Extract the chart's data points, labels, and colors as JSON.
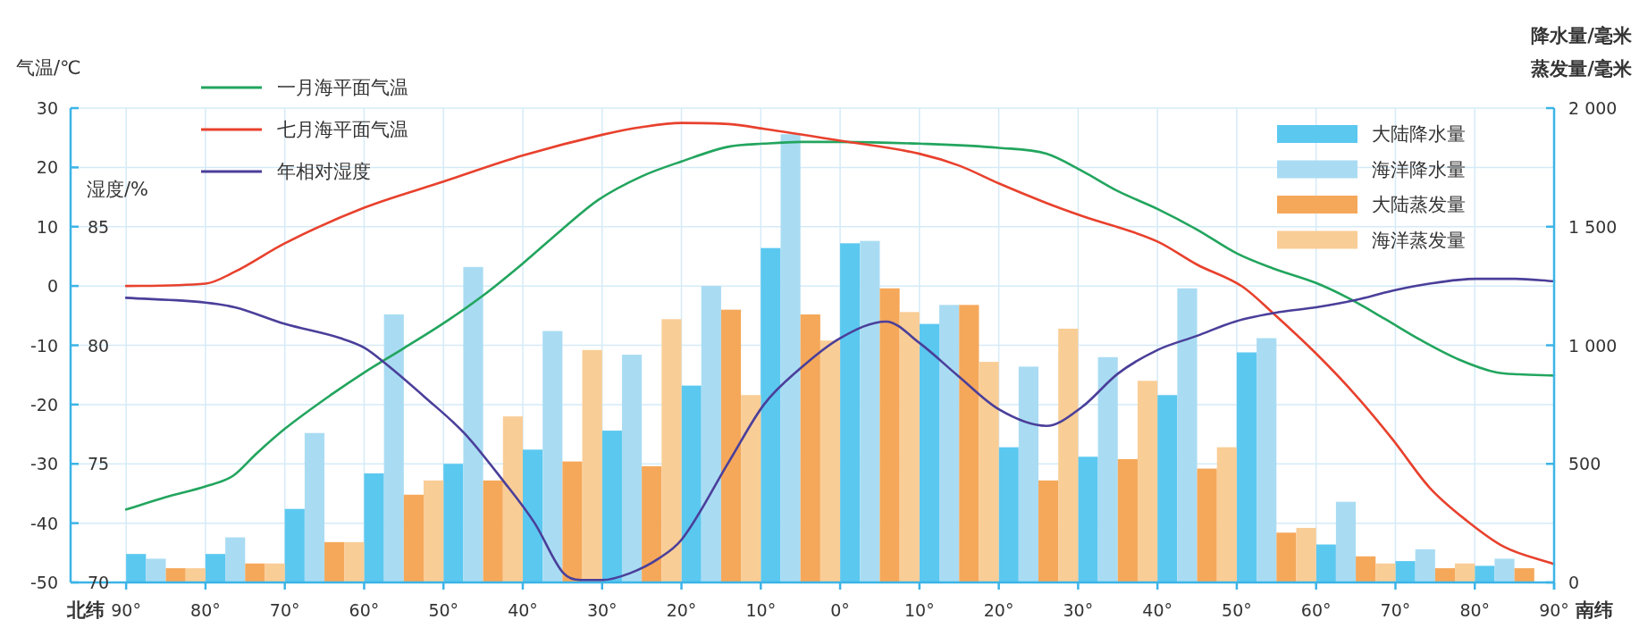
{
  "chart_data": {
    "type": "bar",
    "xlim": [
      97,
      -90
    ],
    "xticks": [
      {
        "value": 90,
        "label": "90°"
      },
      {
        "value": 80,
        "label": "80°"
      },
      {
        "value": 70,
        "label": "70°"
      },
      {
        "value": 60,
        "label": "60°"
      },
      {
        "value": 50,
        "label": "50°"
      },
      {
        "value": 40,
        "label": "40°"
      },
      {
        "value": 30,
        "label": "30°"
      },
      {
        "value": 20,
        "label": "20°"
      },
      {
        "value": 10,
        "label": "10°"
      },
      {
        "value": 0,
        "label": "0°"
      },
      {
        "value": -10,
        "label": "10°"
      },
      {
        "value": -20,
        "label": "20°"
      },
      {
        "value": -30,
        "label": "30°"
      },
      {
        "value": -40,
        "label": "40°"
      },
      {
        "value": -50,
        "label": "50°"
      },
      {
        "value": -60,
        "label": "60°"
      },
      {
        "value": -70,
        "label": "70°"
      },
      {
        "value": -80,
        "label": "80°"
      },
      {
        "value": -90,
        "label": "90°"
      }
    ],
    "ylabel": "气温/℃",
    "ylim": [
      -50,
      30
    ],
    "yticks": [
      -50,
      -40,
      -30,
      -20,
      -10,
      0,
      10,
      20,
      30
    ],
    "y2label": "降水量/毫米",
    "y2lim": [
      0,
      2000
    ],
    "y2ticks": [
      0,
      500,
      {
        "value": 1000,
        "label": "1 000"
      },
      {
        "value": 1500,
        "label": "1 500"
      },
      {
        "value": 2000,
        "label": "2 000"
      }
    ],
    "y3label": "湿度/%",
    "y3lim": [
      70,
      90
    ],
    "y3ticks": [
      70,
      75,
      80,
      85
    ],
    "annotations": [
      "北纬",
      "南纬",
      "蒸发量/毫米"
    ],
    "grid": true,
    "legend": "top right",
    "series": [
      {
        "name": "大陆降水量",
        "axis": "y2",
        "color": "#5bc8f0",
        "x": [
          88.75,
          78.75,
          68.75,
          58.75,
          48.75,
          38.75,
          28.75,
          18.75,
          8.75,
          -1.25,
          -11.25,
          -21.25,
          -31.25,
          -41.25,
          -51.25,
          -61.25,
          -71.25,
          -81.25
        ],
        "values": [
          120,
          120,
          310,
          460,
          500,
          560,
          640,
          830,
          1410,
          1430,
          1090,
          570,
          530,
          790,
          970,
          160,
          90,
          70
        ]
      },
      {
        "name": "海洋降水量",
        "axis": "y2",
        "color": "#a9dcf3",
        "x": [
          86.25,
          76.25,
          66.25,
          56.25,
          46.25,
          36.25,
          26.25,
          16.25,
          6.25,
          -3.75,
          -13.75,
          -23.75,
          -33.75,
          -43.75,
          -53.75,
          -63.75,
          -73.75,
          -83.75
        ],
        "values": [
          100,
          190,
          630,
          1130,
          1330,
          1060,
          960,
          1250,
          1890,
          1440,
          1170,
          910,
          950,
          1240,
          1030,
          340,
          140,
          100
        ]
      },
      {
        "name": "大陆蒸发量",
        "axis": "y2",
        "color": "#f5a85a",
        "x": [
          83.75,
          73.75,
          63.75,
          53.75,
          43.75,
          33.75,
          23.75,
          13.75,
          3.75,
          -6.25,
          -16.25,
          -26.25,
          -36.25,
          -46.25,
          -56.25,
          -66.25,
          -76.25,
          -86.25
        ],
        "values": [
          60,
          80,
          170,
          370,
          430,
          510,
          490,
          1150,
          1130,
          1240,
          1170,
          430,
          520,
          480,
          210,
          110,
          60,
          60
        ]
      },
      {
        "name": "海洋蒸发量",
        "axis": "y2",
        "color": "#f9cd96",
        "x": [
          81.25,
          71.25,
          61.25,
          51.25,
          41.25,
          31.25,
          21.25,
          11.25,
          1.25,
          -8.75,
          -18.75,
          -28.75,
          -38.75,
          -48.75,
          -58.75,
          -68.75,
          -78.75
        ],
        "values": [
          60,
          80,
          170,
          430,
          700,
          980,
          1110,
          790,
          1020,
          1140,
          930,
          1070,
          850,
          570,
          230,
          80,
          80
        ]
      },
      {
        "name": "一月海平面气温",
        "type": "line",
        "axis": "y",
        "color": "#22a55e",
        "x": [
          90,
          85,
          80,
          76.5,
          73.6,
          70,
          64,
          60,
          55,
          50,
          45,
          40,
          35,
          30.5,
          25,
          20,
          14,
          9.6,
          5,
          0,
          -10,
          -20,
          -26,
          -30.5,
          -35,
          -40,
          -45,
          -50,
          -54.5,
          -60,
          -64,
          -68.6,
          -73.3,
          -78,
          -82.8,
          -85.6,
          -90
        ],
        "values": [
          -37.7,
          -35.6,
          -33.8,
          -32,
          -28.3,
          -24.1,
          -18.2,
          -14.6,
          -10.5,
          -6.3,
          -1.6,
          3.8,
          9.6,
          14.5,
          18.5,
          21,
          23.5,
          24,
          24.3,
          24.3,
          24,
          23.3,
          22.3,
          19.4,
          16,
          13,
          9.5,
          5.5,
          3,
          0.5,
          -2,
          -5.5,
          -9.2,
          -12.4,
          -14.6,
          -14.9,
          -15.1
        ]
      },
      {
        "name": "七月海平面气温",
        "type": "line",
        "axis": "y",
        "color": "#e8412d",
        "x": [
          90,
          80,
          76.3,
          70,
          60,
          50,
          40,
          30,
          25,
          20,
          14,
          9.6,
          0,
          -10,
          -15,
          -20,
          -26,
          -30.5,
          -40,
          -45,
          -50.7,
          -54.5,
          -60,
          -64.9,
          -69.6,
          -74.3,
          -79,
          -83.7,
          -90
        ],
        "values": [
          0,
          0.4,
          2.4,
          7.2,
          13.2,
          17.6,
          22,
          25.5,
          26.8,
          27.5,
          27.3,
          26.5,
          24.5,
          22.3,
          20.3,
          17.3,
          14,
          11.8,
          7.5,
          3.6,
          -0.1,
          -4.5,
          -11.4,
          -18.3,
          -25.8,
          -34,
          -39.6,
          -44,
          -46.9
        ]
      },
      {
        "name": "年相对湿度",
        "type": "line",
        "axis": "y3",
        "color": "#4a3f9a",
        "x": [
          90,
          80,
          76.3,
          70,
          63,
          60,
          57.2,
          52.3,
          47.4,
          42.5,
          38.5,
          34.9,
          32.7,
          30,
          26.4,
          22.9,
          20,
          14,
          9.6,
          5.1,
          0,
          -5.8,
          -10,
          -14.9,
          -20,
          -26,
          -30.5,
          -35,
          -40,
          -45,
          -49.8,
          -55.4,
          -60,
          -64.9,
          -69.6,
          -74.3,
          -80.2,
          -85.1,
          -90
        ],
        "values": [
          82,
          81.8,
          81.6,
          80.9,
          80.3,
          79.9,
          79.2,
          77.8,
          76.3,
          74.3,
          72.5,
          70.4,
          70.1,
          70.1,
          70.4,
          71,
          71.8,
          75.1,
          77.5,
          79,
          80.3,
          81,
          80.1,
          78.7,
          77.3,
          76.6,
          77.4,
          78.8,
          79.8,
          80.4,
          81,
          81.4,
          81.6,
          81.9,
          82.3,
          82.6,
          82.8,
          82.8,
          82.7
        ]
      }
    ]
  }
}
